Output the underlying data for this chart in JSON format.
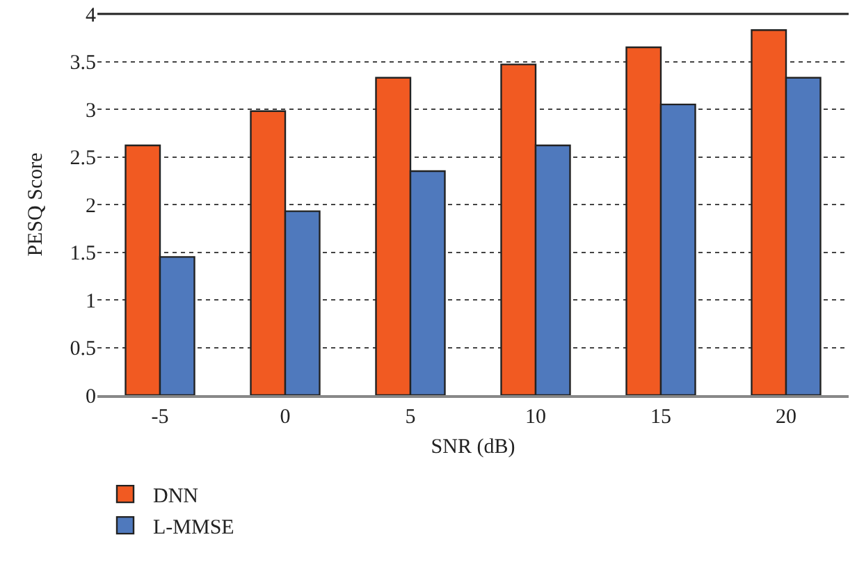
{
  "chart_data": {
    "type": "bar",
    "xlabel": "SNR (dB)",
    "ylabel": "PESQ Score",
    "categories": [
      "-5",
      "0",
      "5",
      "10",
      "15",
      "20"
    ],
    "series": [
      {
        "name": "DNN",
        "color": "#f15a22",
        "values": [
          2.62,
          2.98,
          3.33,
          3.47,
          3.65,
          3.83
        ]
      },
      {
        "name": "L-MMSE",
        "color": "#4f79bd",
        "values": [
          1.45,
          1.93,
          2.35,
          2.62,
          3.05,
          3.33
        ]
      }
    ],
    "ylim": [
      0,
      4
    ],
    "yticks": [
      0,
      0.5,
      1,
      1.5,
      2,
      2.5,
      3,
      3.5,
      4
    ],
    "grid": "y",
    "legend": "bottom left"
  }
}
